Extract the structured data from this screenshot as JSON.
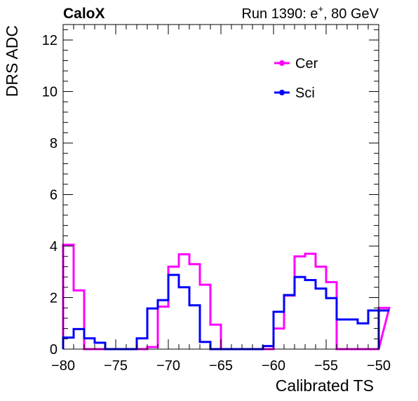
{
  "header": {
    "left": "CaloX",
    "right_prefix": "Run 1390: e",
    "right_sup": "+",
    "right_suffix": ", 80 GeV"
  },
  "chart_data": {
    "type": "line",
    "xlabel": "Calibrated TS",
    "ylabel": "DRS ADC",
    "xlim": [
      -80,
      -50
    ],
    "ylim": [
      0,
      12.6
    ],
    "x_ticks": [
      -80,
      -75,
      -70,
      -65,
      -60,
      -55,
      -50
    ],
    "x_tick_labels": [
      "−80",
      "−75",
      "−70",
      "−65",
      "−60",
      "−55",
      "−50"
    ],
    "y_ticks": [
      0,
      2,
      4,
      6,
      8,
      10,
      12
    ],
    "y_tick_labels": [
      "0",
      "2",
      "4",
      "6",
      "8",
      "10",
      "12"
    ],
    "bin_width": 1,
    "bin_start": -80,
    "legend_position": "top-right",
    "series": [
      {
        "name": "Cer",
        "color": "#ff00ff",
        "values": [
          4.05,
          2.28,
          0,
          0,
          0,
          0,
          0,
          0,
          0.08,
          1.65,
          3.2,
          3.68,
          3.3,
          2.5,
          0.95,
          0,
          0,
          0,
          0,
          0,
          0.8,
          2.08,
          3.6,
          3.7,
          3.2,
          2.6,
          0,
          0,
          0,
          0,
          0,
          1.6
        ]
      },
      {
        "name": "Sci",
        "color": "#0000ff",
        "values": [
          0.45,
          0.78,
          0.42,
          0.25,
          0,
          0,
          0,
          0.42,
          1.58,
          1.9,
          2.88,
          2.4,
          1.7,
          0.28,
          0,
          0,
          0,
          0,
          0,
          0.12,
          1.45,
          2.1,
          2.8,
          2.68,
          2.35,
          1.98,
          1.15,
          1.15,
          1.0,
          1.5,
          1.5,
          1.5
        ]
      }
    ]
  }
}
